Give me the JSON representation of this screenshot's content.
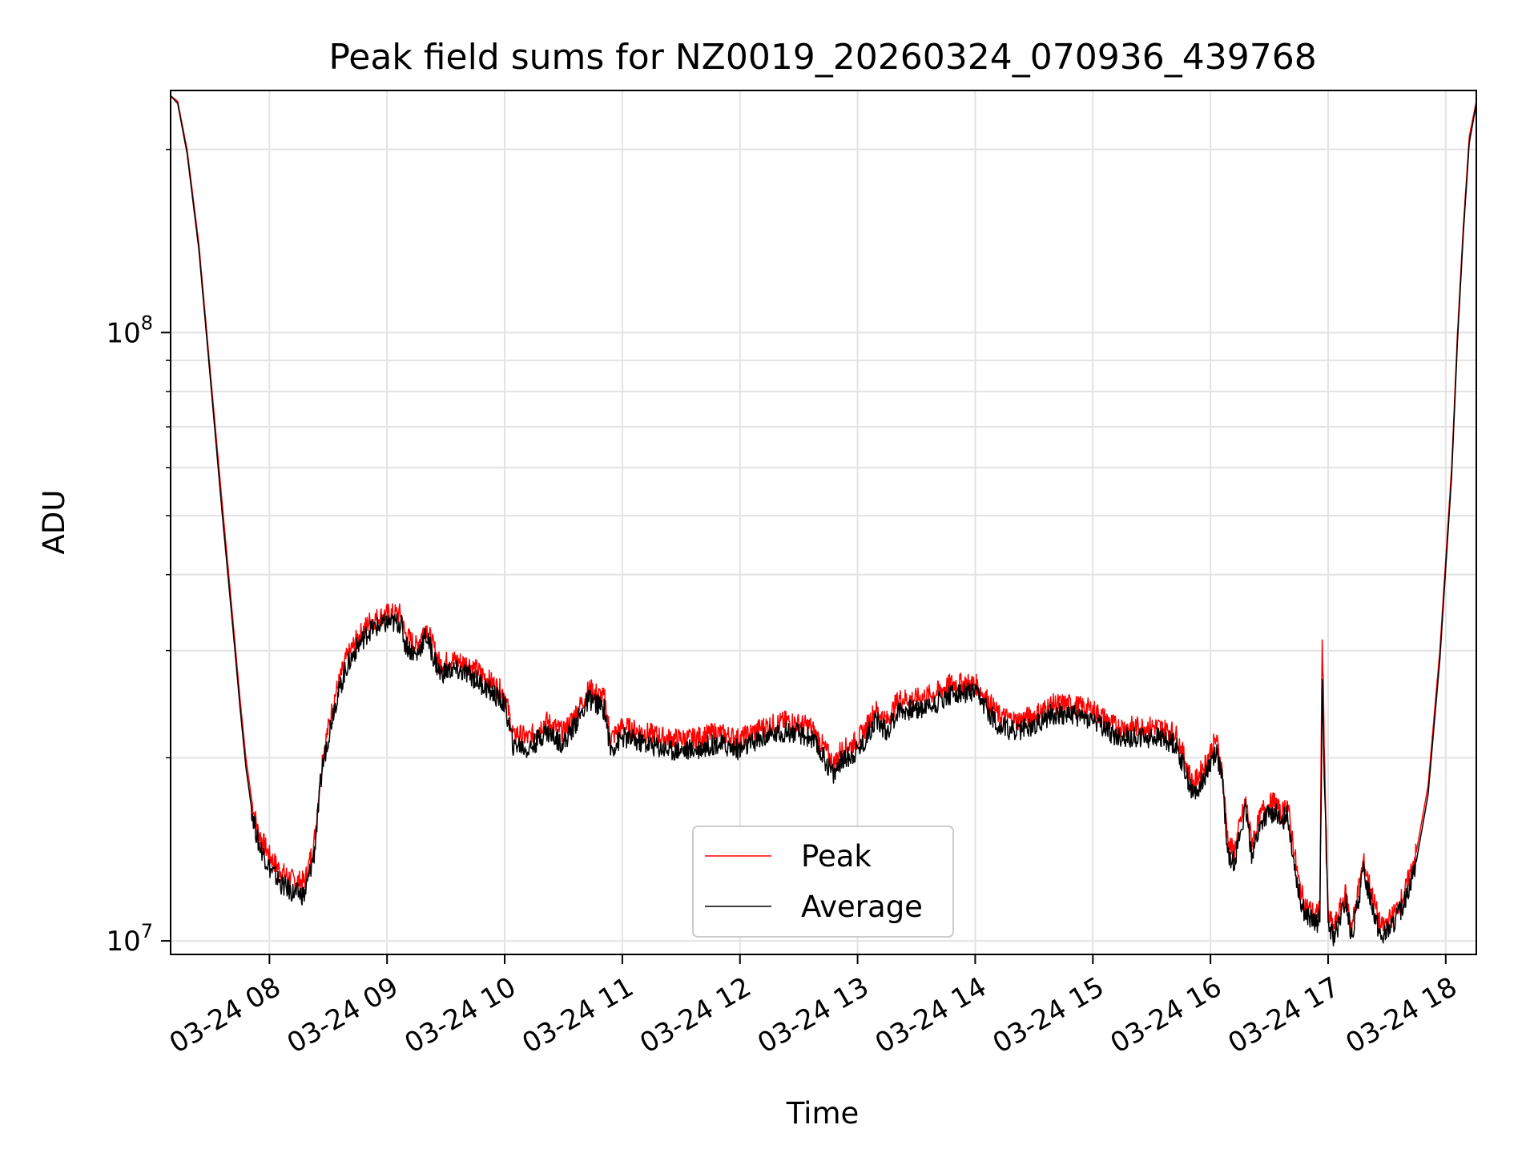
{
  "chart_data": {
    "type": "line",
    "title": "Peak field sums for NZ0019_20260324_070936_439768",
    "xlabel": "Time",
    "ylabel": "ADU",
    "yscale": "log",
    "ylim": [
      9500000,
      250000000
    ],
    "xlim_hours": [
      7.16,
      18.26
    ],
    "x_ticks": [
      {
        "hour": 8,
        "label": "03-24 08"
      },
      {
        "hour": 9,
        "label": "03-24 09"
      },
      {
        "hour": 10,
        "label": "03-24 10"
      },
      {
        "hour": 11,
        "label": "03-24 11"
      },
      {
        "hour": 12,
        "label": "03-24 12"
      },
      {
        "hour": 13,
        "label": "03-24 13"
      },
      {
        "hour": 14,
        "label": "03-24 14"
      },
      {
        "hour": 15,
        "label": "03-24 15"
      },
      {
        "hour": 16,
        "label": "03-24 16"
      },
      {
        "hour": 17,
        "label": "03-24 17"
      },
      {
        "hour": 18,
        "label": "03-24 18"
      }
    ],
    "y_ticks": [
      {
        "value": 10000000,
        "base": "10",
        "exp": "7"
      },
      {
        "value": 100000000,
        "base": "10",
        "exp": "8"
      }
    ],
    "grid": true,
    "legend_position": "lower-center",
    "series": [
      {
        "name": "Peak",
        "color": "#ff0000",
        "x_hours": [
          7.16,
          7.22,
          7.3,
          7.4,
          7.5,
          7.6,
          7.7,
          7.75,
          7.8,
          7.85,
          7.9,
          8.0,
          8.1,
          8.2,
          8.3,
          8.38,
          8.45,
          8.55,
          8.65,
          8.75,
          8.85,
          9.0,
          9.12,
          9.15,
          9.25,
          9.33,
          9.42,
          9.45,
          9.55,
          9.7,
          9.85,
          10.0,
          10.08,
          10.1,
          10.2,
          10.35,
          10.5,
          10.65,
          10.72,
          10.85,
          10.9,
          11.0,
          11.2,
          11.4,
          11.6,
          11.8,
          12.0,
          12.2,
          12.4,
          12.6,
          12.7,
          12.8,
          12.85,
          12.95,
          13.05,
          13.15,
          13.25,
          13.35,
          13.5,
          13.65,
          13.8,
          14.0,
          14.1,
          14.2,
          14.35,
          14.5,
          14.65,
          14.8,
          15.0,
          15.2,
          15.4,
          15.55,
          15.7,
          15.8,
          15.85,
          15.95,
          16.05,
          16.1,
          16.15,
          16.2,
          16.25,
          16.3,
          16.35,
          16.45,
          16.55,
          16.6,
          16.65,
          16.75,
          16.8,
          16.9,
          16.93,
          16.95,
          16.98,
          17.0,
          17.05,
          17.15,
          17.2,
          17.3,
          17.45,
          17.55,
          17.65,
          17.75,
          17.85,
          17.95,
          18.05,
          18.1,
          18.15,
          18.2,
          18.26
        ],
        "values": [
          245000000,
          240000000,
          200000000,
          140000000,
          85000000,
          52000000,
          32000000,
          25000000,
          20000000,
          17000000,
          15200000,
          13800000,
          13000000,
          12600000,
          12500000,
          14500000,
          20000000,
          25000000,
          29000000,
          31500000,
          33500000,
          34500000,
          34500000,
          32000000,
          30500000,
          33000000,
          29500000,
          28500000,
          29000000,
          28500000,
          27000000,
          25500000,
          21500000,
          22000000,
          21500000,
          23000000,
          22000000,
          24500000,
          26000000,
          25000000,
          21500000,
          22500000,
          22000000,
          21500000,
          21500000,
          22000000,
          21500000,
          22500000,
          23000000,
          22500000,
          21000000,
          19500000,
          20500000,
          21000000,
          22000000,
          24000000,
          23000000,
          25000000,
          25000000,
          25500000,
          26500000,
          26500000,
          25000000,
          23500000,
          23000000,
          23500000,
          24500000,
          24500000,
          24000000,
          22500000,
          22500000,
          22500000,
          22000000,
          19500000,
          18000000,
          19500000,
          21500000,
          19000000,
          14500000,
          14000000,
          15500000,
          17000000,
          14500000,
          16500000,
          17000000,
          16000000,
          17000000,
          12500000,
          11500000,
          11000000,
          11500000,
          32000000,
          16000000,
          11000000,
          10500000,
          12000000,
          10500000,
          13500000,
          10500000,
          11000000,
          12000000,
          14000000,
          18000000,
          30000000,
          60000000,
          100000000,
          150000000,
          210000000,
          240000000
        ]
      },
      {
        "name": "Average",
        "color": "#000000",
        "x_hours": [
          7.16,
          7.22,
          7.3,
          7.4,
          7.5,
          7.6,
          7.7,
          7.75,
          7.8,
          7.85,
          7.9,
          8.0,
          8.1,
          8.2,
          8.3,
          8.38,
          8.45,
          8.55,
          8.65,
          8.75,
          8.85,
          9.0,
          9.12,
          9.15,
          9.25,
          9.33,
          9.42,
          9.45,
          9.55,
          9.7,
          9.85,
          10.0,
          10.08,
          10.1,
          10.2,
          10.35,
          10.5,
          10.65,
          10.72,
          10.85,
          10.9,
          11.0,
          11.2,
          11.4,
          11.6,
          11.8,
          12.0,
          12.2,
          12.4,
          12.6,
          12.7,
          12.8,
          12.85,
          12.95,
          13.05,
          13.15,
          13.25,
          13.35,
          13.5,
          13.65,
          13.8,
          14.0,
          14.1,
          14.2,
          14.35,
          14.5,
          14.65,
          14.8,
          15.0,
          15.2,
          15.4,
          15.55,
          15.7,
          15.8,
          15.85,
          15.95,
          16.05,
          16.1,
          16.15,
          16.2,
          16.25,
          16.3,
          16.35,
          16.45,
          16.55,
          16.6,
          16.65,
          16.75,
          16.8,
          16.9,
          16.93,
          16.95,
          16.98,
          17.0,
          17.05,
          17.15,
          17.2,
          17.3,
          17.45,
          17.55,
          17.65,
          17.75,
          17.85,
          17.95,
          18.05,
          18.1,
          18.15,
          18.2,
          18.26
        ],
        "values": [
          245000000,
          238000000,
          197000000,
          137000000,
          83000000,
          50000000,
          31000000,
          24200000,
          19300000,
          16400000,
          14600000,
          13200000,
          12400000,
          12000000,
          11900000,
          13900000,
          19300000,
          24200000,
          28000000,
          30500000,
          32400000,
          33300000,
          33300000,
          30800000,
          29400000,
          31800000,
          28400000,
          27500000,
          27900000,
          27400000,
          26000000,
          24500000,
          20600000,
          21100000,
          20600000,
          22100000,
          21100000,
          23600000,
          25000000,
          24000000,
          20600000,
          21600000,
          21100000,
          20600000,
          20600000,
          21100000,
          20600000,
          21600000,
          22100000,
          21600000,
          20200000,
          18700000,
          19700000,
          20200000,
          21100000,
          23100000,
          22100000,
          24000000,
          24000000,
          24500000,
          25500000,
          25500000,
          24000000,
          22600000,
          22100000,
          22600000,
          23600000,
          23600000,
          23100000,
          21600000,
          21600000,
          21600000,
          21100000,
          18700000,
          17300000,
          18700000,
          20600000,
          18300000,
          13900000,
          13500000,
          14900000,
          16400000,
          13900000,
          15900000,
          16400000,
          15400000,
          16400000,
          12000000,
          11100000,
          10600000,
          11100000,
          26000000,
          15400000,
          10600000,
          10100000,
          11600000,
          10100000,
          13000000,
          10100000,
          10600000,
          11600000,
          13500000,
          17400000,
          29000000,
          58000000,
          97000000,
          146000000,
          205000000,
          238000000
        ]
      }
    ]
  }
}
